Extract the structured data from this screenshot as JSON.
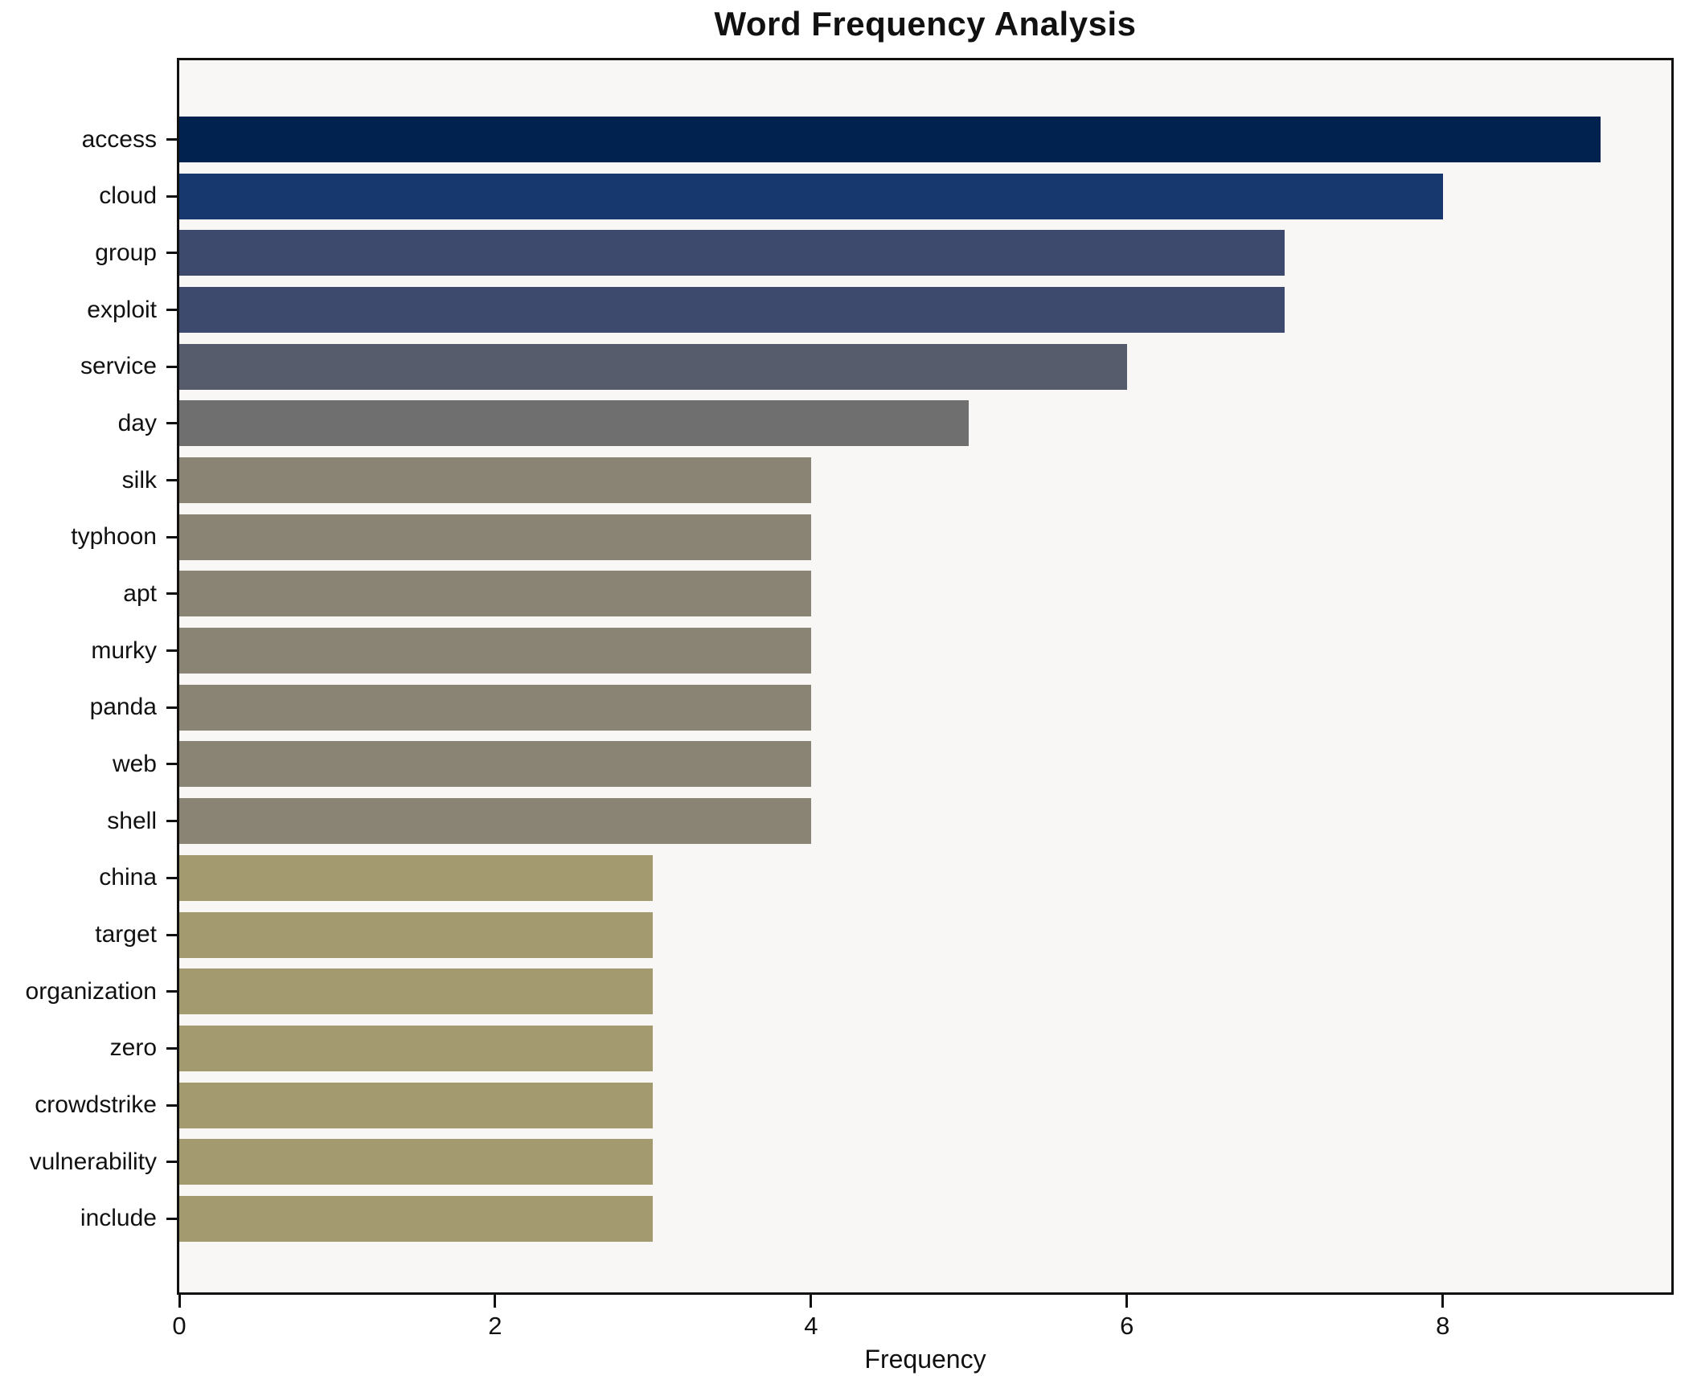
{
  "title": "Word Frequency Analysis",
  "x_axis_label": "Frequency",
  "chart_data": {
    "type": "bar",
    "orientation": "horizontal",
    "title": "Word Frequency Analysis",
    "xlabel": "Frequency",
    "ylabel": "",
    "categories": [
      "access",
      "cloud",
      "group",
      "exploit",
      "service",
      "day",
      "silk",
      "typhoon",
      "apt",
      "murky",
      "panda",
      "web",
      "shell",
      "china",
      "target",
      "organization",
      "zero",
      "crowdstrike",
      "vulnerability",
      "include"
    ],
    "values": [
      9,
      8,
      7,
      7,
      6,
      5,
      4,
      4,
      4,
      4,
      4,
      4,
      4,
      3,
      3,
      3,
      3,
      3,
      3,
      3
    ],
    "bar_colors": [
      "#01214e",
      "#17386e",
      "#3d4a6e",
      "#3d4a6e",
      "#565c6b",
      "#6f6f70",
      "#8a8475",
      "#8a8475",
      "#8a8475",
      "#8a8475",
      "#8a8475",
      "#8a8475",
      "#8a8475",
      "#a39a6f",
      "#a39a6f",
      "#a39a6f",
      "#a39a6f",
      "#a39a6f",
      "#a39a6f",
      "#a39a6f"
    ],
    "xlim": [
      0,
      9.447
    ],
    "x_ticks": [
      0,
      2,
      4,
      6,
      8
    ],
    "grid": false,
    "legend": false,
    "plot_background": "#f8f7f5",
    "figure_background": "#ffffff",
    "spine_color": "#111111"
  }
}
